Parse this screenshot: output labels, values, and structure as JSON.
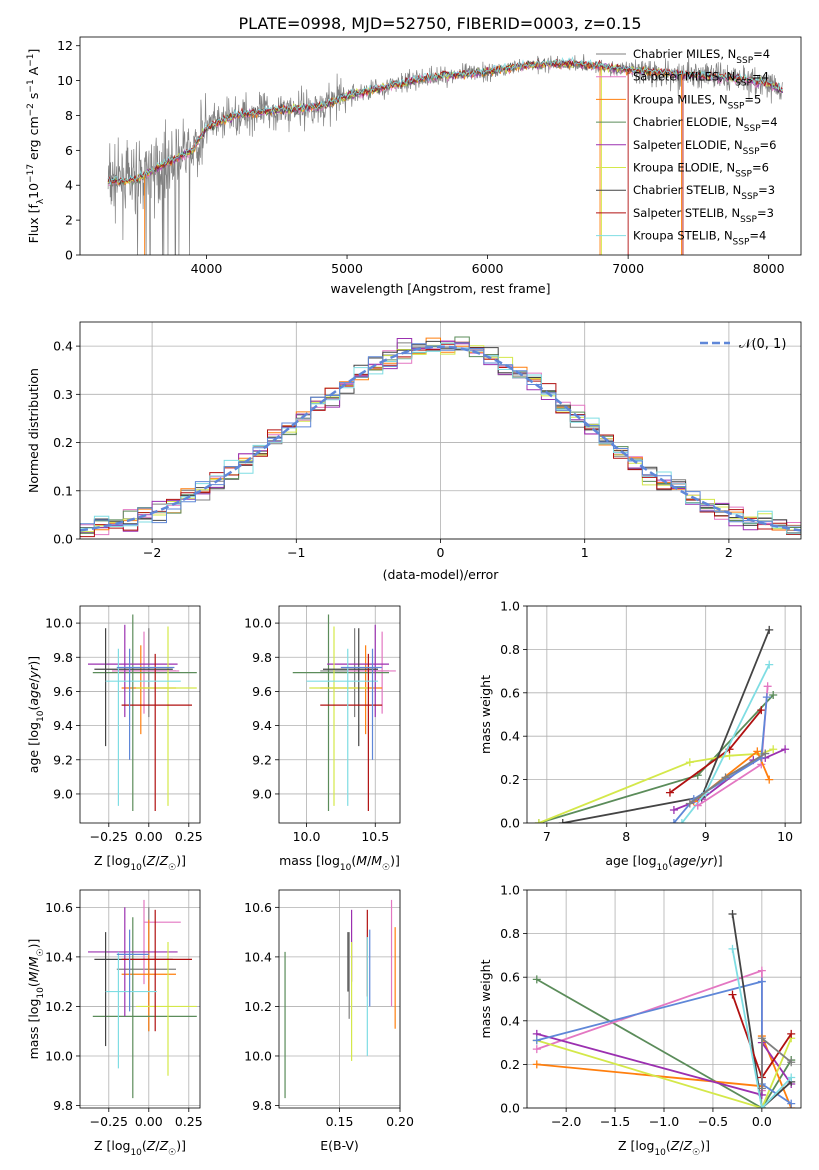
{
  "figure_title": "PLATE=0998, MJD=52750, FIBERID=0003, z=0.15",
  "colors": {
    "Chabrier MILES": "#7f7f7f",
    "Salpeter MILES": "#e377c2",
    "Kroupa MILES": "#ff7f0e",
    "Chabrier ELODIE": "#5b8c5a",
    "Salpeter ELODIE": "#9b30b0",
    "Kroupa ELODIE": "#d4e84a",
    "Chabrier STELIB": "#444444",
    "Salpeter STELIB": "#b01010",
    "Kroupa STELIB": "#7fdde3",
    "blue_model": "#5f87d8",
    "gaussian": "#5f87d8"
  },
  "chart_data": [
    {
      "type": "line",
      "id": "spectrum",
      "xlabel": "wavelength [Angstrom, rest frame]",
      "ylabel_parts": [
        "Flux [f",
        "λ",
        "10",
        "−17",
        " erg cm",
        "−2",
        " s",
        "−1",
        " A",
        "−1",
        "]"
      ],
      "xlim": [
        3100,
        8230
      ],
      "ylim": [
        0,
        12.5
      ],
      "xticks": [
        4000,
        5000,
        6000,
        7000,
        8000
      ],
      "yticks": [
        0,
        2,
        4,
        6,
        8,
        10,
        12
      ],
      "grid": false,
      "legend_position": "top-right",
      "legend": [
        {
          "name": "Chabrier MILES",
          "nssp": "4"
        },
        {
          "name": "Salpeter MILES",
          "nssp": "4"
        },
        {
          "name": "Kroupa MILES",
          "nssp": "5"
        },
        {
          "name": "Chabrier ELODIE",
          "nssp": "4"
        },
        {
          "name": "Salpeter ELODIE",
          "nssp": "6"
        },
        {
          "name": "Kroupa ELODIE",
          "nssp": "6"
        },
        {
          "name": "Chabrier STELIB",
          "nssp": "3"
        },
        {
          "name": "Salpeter STELIB",
          "nssp": "3"
        },
        {
          "name": "Kroupa STELIB",
          "nssp": "4"
        }
      ],
      "nssp_label": "N",
      "nssp_sub": "SSP",
      "data_color": "#808080",
      "continuum": [
        [
          3300,
          4.2
        ],
        [
          3500,
          4.3
        ],
        [
          3700,
          5.2
        ],
        [
          3900,
          6.0
        ],
        [
          4000,
          7.3
        ],
        [
          4200,
          8.0
        ],
        [
          4500,
          8.3
        ],
        [
          4800,
          8.5
        ],
        [
          5000,
          9.1
        ],
        [
          5300,
          9.7
        ],
        [
          5600,
          10.2
        ],
        [
          6000,
          10.5
        ],
        [
          6300,
          10.9
        ],
        [
          6600,
          11.0
        ],
        [
          7000,
          10.6
        ],
        [
          7500,
          10.3
        ],
        [
          7800,
          10.1
        ],
        [
          8000,
          9.8
        ],
        [
          8100,
          9.4
        ]
      ]
    },
    {
      "type": "histogram",
      "id": "residuals",
      "xlabel": "(data-model)/error",
      "ylabel": "Normed distribution",
      "xlim": [
        -2.5,
        2.5
      ],
      "ylim": [
        0,
        0.45
      ],
      "xticks": [
        -2,
        -1,
        0,
        1,
        2
      ],
      "yticks": [
        0.0,
        0.1,
        0.2,
        0.3,
        0.4
      ],
      "grid": true,
      "bin_width": 0.1,
      "legend_label": "𝒩(0, 1)",
      "legend_position": "top-right"
    },
    {
      "type": "scatter",
      "id": "z_age",
      "xlabel": "Z [log10(Z/Z☉)]",
      "ylabel": "age  [log10(age/yr)]",
      "xlim": [
        -0.43,
        0.32
      ],
      "ylim": [
        8.83,
        10.1
      ],
      "xticks": [
        -0.25,
        0,
        0.25
      ],
      "xtick_labels": [
        "−0.25",
        "0.00",
        "0.25"
      ],
      "yticks": [
        9.0,
        9.2,
        9.4,
        9.6,
        9.8,
        10.0
      ],
      "grid": true,
      "points": [
        {
          "c": "#7f7f7f",
          "x": 0.0,
          "xe": [
            -0.2,
            0.17
          ],
          "y": 9.72,
          "ye": [
            9.45,
            9.97
          ]
        },
        {
          "c": "#e377c2",
          "x": -0.03,
          "xe": [
            -0.23,
            0.19
          ],
          "y": 9.72,
          "ye": [
            9.47,
            9.95
          ]
        },
        {
          "c": "#ff7f0e",
          "x": -0.05,
          "xe": [
            -0.17,
            0.17
          ],
          "y": 9.62,
          "ye": [
            9.35,
            9.87
          ]
        },
        {
          "c": "#5b8c5a",
          "x": -0.1,
          "xe": [
            -0.35,
            0.3
          ],
          "y": 9.71,
          "ye": [
            8.9,
            10.05
          ]
        },
        {
          "c": "#9b30b0",
          "x": -0.15,
          "xe": [
            -0.38,
            0.18
          ],
          "y": 9.76,
          "ye": [
            9.45,
            9.99
          ]
        },
        {
          "c": "#d4e84a",
          "x": 0.12,
          "xe": [
            -0.08,
            0.3
          ],
          "y": 9.62,
          "ye": [
            8.93,
            9.98
          ]
        },
        {
          "c": "#444444",
          "x": -0.27,
          "xe": [
            -0.34,
            0.15
          ],
          "y": 9.73,
          "ye": [
            9.28,
            9.97
          ]
        },
        {
          "c": "#b01010",
          "x": 0.04,
          "xe": [
            -0.17,
            0.27
          ],
          "y": 9.52,
          "ye": [
            8.9,
            9.82
          ]
        },
        {
          "c": "#7fdde3",
          "x": -0.19,
          "xe": [
            -0.27,
            0.2
          ],
          "y": 9.66,
          "ye": [
            8.93,
            9.85
          ]
        },
        {
          "c": "#5f87d8",
          "x": -0.12,
          "xe": [
            -0.2,
            0.16
          ],
          "y": 9.74,
          "ye": [
            9.2,
            9.85
          ]
        }
      ]
    },
    {
      "type": "scatter",
      "id": "mass_age",
      "xlabel": "mass [log10(M/M☉)]",
      "xlim": [
        9.8,
        10.68
      ],
      "ylim": [
        8.83,
        10.1
      ],
      "xticks": [
        10.0,
        10.5
      ],
      "xtick_labels": [
        "10.0",
        "10.5"
      ],
      "yticks": [
        9.0,
        9.2,
        9.4,
        9.6,
        9.8,
        10.0
      ],
      "grid": true,
      "points": [
        {
          "c": "#7f7f7f",
          "x": 10.35,
          "xe": [
            10.1,
            10.6
          ],
          "y": 9.72,
          "ye": [
            9.45,
            9.97
          ]
        },
        {
          "c": "#e377c2",
          "x": 10.55,
          "xe": [
            10.3,
            10.65
          ],
          "y": 9.72,
          "ye": [
            9.47,
            9.95
          ]
        },
        {
          "c": "#ff7f0e",
          "x": 10.43,
          "xe": [
            10.1,
            10.55
          ],
          "y": 9.62,
          "ye": [
            9.35,
            9.87
          ]
        },
        {
          "c": "#5b8c5a",
          "x": 10.16,
          "xe": [
            9.9,
            10.6
          ],
          "y": 9.71,
          "ye": [
            8.9,
            10.05
          ]
        },
        {
          "c": "#9b30b0",
          "x": 10.5,
          "xe": [
            10.15,
            10.6
          ],
          "y": 9.76,
          "ye": [
            9.45,
            9.99
          ]
        },
        {
          "c": "#d4e84a",
          "x": 10.2,
          "xe": [
            10.02,
            10.45
          ],
          "y": 9.62,
          "ye": [
            8.93,
            9.98
          ]
        },
        {
          "c": "#444444",
          "x": 10.38,
          "xe": [
            10.12,
            10.52
          ],
          "y": 9.73,
          "ye": [
            9.28,
            9.97
          ]
        },
        {
          "c": "#b01010",
          "x": 10.45,
          "xe": [
            10.1,
            10.55
          ],
          "y": 9.52,
          "ye": [
            8.9,
            9.82
          ]
        },
        {
          "c": "#7fdde3",
          "x": 10.3,
          "xe": [
            10.0,
            10.52
          ],
          "y": 9.66,
          "ye": [
            8.93,
            9.85
          ]
        },
        {
          "c": "#5f87d8",
          "x": 10.48,
          "xe": [
            10.25,
            10.55
          ],
          "y": 9.74,
          "ye": [
            9.2,
            9.85
          ]
        }
      ]
    },
    {
      "type": "line",
      "id": "age_weight",
      "xlabel": "age  [log10(age/yr)]",
      "ylabel": "mass weight",
      "xlim": [
        6.75,
        10.2
      ],
      "ylim": [
        0,
        1.0
      ],
      "xticks": [
        7,
        8,
        9,
        10
      ],
      "yticks": [
        0.0,
        0.2,
        0.4,
        0.6,
        0.8,
        1.0
      ],
      "grid": true,
      "series": [
        {
          "c": "#5b8c5a",
          "x": [
            6.9,
            8.9,
            9.85
          ],
          "y": [
            0.0,
            0.22,
            0.59
          ]
        },
        {
          "c": "#d4e84a",
          "x": [
            6.9,
            8.8,
            9.3,
            9.7,
            9.85
          ],
          "y": [
            0.0,
            0.28,
            0.31,
            0.32,
            0.34
          ]
        },
        {
          "c": "#9b30b0",
          "x": [
            8.6,
            8.95,
            9.6,
            9.75,
            10.0
          ],
          "y": [
            0.06,
            0.11,
            0.29,
            0.3,
            0.34
          ]
        },
        {
          "c": "#b01010",
          "x": [
            8.55,
            9.3,
            9.7
          ],
          "y": [
            0.14,
            0.34,
            0.52
          ]
        },
        {
          "c": "#444444",
          "x": [
            7.2,
            8.95,
            9.8
          ],
          "y": [
            0.0,
            0.12,
            0.89
          ]
        },
        {
          "c": "#7fdde3",
          "x": [
            8.7,
            9.0,
            9.8
          ],
          "y": [
            0.0,
            0.14,
            0.73
          ]
        },
        {
          "c": "#e377c2",
          "x": [
            8.9,
            9.7,
            9.78
          ],
          "y": [
            0.08,
            0.27,
            0.63
          ]
        },
        {
          "c": "#ff7f0e",
          "x": [
            8.85,
            9.65,
            9.8
          ],
          "y": [
            0.1,
            0.33,
            0.2
          ]
        },
        {
          "c": "#5f87d8",
          "x": [
            8.6,
            8.85,
            9.7,
            9.77
          ],
          "y": [
            0.0,
            0.11,
            0.3,
            0.58
          ]
        },
        {
          "c": "#7f7f7f",
          "x": [
            8.8,
            9.25,
            9.75
          ],
          "y": [
            0.09,
            0.21,
            0.32
          ]
        }
      ]
    },
    {
      "type": "scatter",
      "id": "z_mass",
      "xlabel": "Z [log10(Z/Z☉)]",
      "ylabel": "mass [log10(M/M☉)]",
      "xlim": [
        -0.43,
        0.32
      ],
      "ylim": [
        9.79,
        10.67
      ],
      "xticks": [
        -0.25,
        0,
        0.25
      ],
      "xtick_labels": [
        "−0.25",
        "0.00",
        "0.25"
      ],
      "yticks": [
        9.8,
        10.0,
        10.2,
        10.4,
        10.6
      ],
      "grid": true,
      "points": [
        {
          "c": "#7f7f7f",
          "x": 0.0,
          "xe": [
            -0.2,
            0.17
          ],
          "y": 10.35,
          "ye": [
            10.1,
            10.6
          ]
        },
        {
          "c": "#e377c2",
          "x": -0.03,
          "xe": [
            -0.03,
            0.2
          ],
          "y": 10.54,
          "ye": [
            10.29,
            10.63
          ]
        },
        {
          "c": "#ff7f0e",
          "x": 0.0,
          "xe": [
            -0.17,
            0.17
          ],
          "y": 10.33,
          "ye": [
            10.1,
            10.55
          ]
        },
        {
          "c": "#5b8c5a",
          "x": -0.1,
          "xe": [
            -0.35,
            0.3
          ],
          "y": 10.16,
          "ye": [
            9.83,
            10.56
          ]
        },
        {
          "c": "#9b30b0",
          "x": -0.15,
          "xe": [
            -0.38,
            0.18
          ],
          "y": 10.42,
          "ye": [
            10.16,
            10.6
          ]
        },
        {
          "c": "#d4e84a",
          "x": 0.12,
          "xe": [
            -0.08,
            0.3
          ],
          "y": 10.2,
          "ye": [
            9.92,
            10.46
          ]
        },
        {
          "c": "#444444",
          "x": -0.27,
          "xe": [
            -0.34,
            0.15
          ],
          "y": 10.39,
          "ye": [
            10.04,
            10.5
          ]
        },
        {
          "c": "#b01010",
          "x": 0.04,
          "xe": [
            -0.17,
            0.27
          ],
          "y": 10.39,
          "ye": [
            10.1,
            10.59
          ]
        },
        {
          "c": "#7fdde3",
          "x": -0.19,
          "xe": [
            -0.27,
            0.05
          ],
          "y": 10.26,
          "ye": [
            9.95,
            10.42
          ]
        },
        {
          "c": "#5f87d8",
          "x": -0.12,
          "xe": [
            -0.2,
            0.0
          ],
          "y": 10.41,
          "ye": [
            10.18,
            10.51
          ]
        }
      ]
    },
    {
      "type": "scatter",
      "id": "ebv_mass",
      "xlabel": "E(B-V)",
      "xlim": [
        0.1,
        0.2
      ],
      "ylim": [
        9.79,
        10.67
      ],
      "xticks": [
        0.15,
        0.2
      ],
      "xtick_labels": [
        "0.15",
        "0.20"
      ],
      "yticks": [
        9.8,
        10.0,
        10.2,
        10.4,
        10.6
      ],
      "grid": true,
      "points": [
        {
          "c": "#7f7f7f",
          "x": 0.158,
          "y": 10.35,
          "ye": [
            10.15,
            10.5
          ]
        },
        {
          "c": "#e377c2",
          "x": 0.193,
          "y": 10.42,
          "ye": [
            10.2,
            10.63
          ]
        },
        {
          "c": "#ff7f0e",
          "x": 0.196,
          "y": 10.33,
          "ye": [
            10.11,
            10.52
          ]
        },
        {
          "c": "#5b8c5a",
          "x": 0.105,
          "y": 10.16,
          "ye": [
            9.83,
            10.42
          ]
        },
        {
          "c": "#9b30b0",
          "x": 0.16,
          "y": 10.42,
          "ye": [
            10.3,
            10.59
          ]
        },
        {
          "c": "#d4e84a",
          "x": 0.16,
          "y": 10.2,
          "ye": [
            9.98,
            10.46
          ]
        },
        {
          "c": "#444444",
          "x": 0.157,
          "y": 10.39,
          "ye": [
            10.26,
            10.5
          ]
        },
        {
          "c": "#b01010",
          "x": 0.173,
          "y": 10.39,
          "ye": [
            10.24,
            10.59
          ]
        },
        {
          "c": "#7fdde3",
          "x": 0.173,
          "y": 10.26,
          "ye": [
            10.0,
            10.48
          ]
        },
        {
          "c": "#5f87d8",
          "x": 0.175,
          "y": 10.41,
          "ye": [
            10.2,
            10.51
          ]
        }
      ]
    },
    {
      "type": "line",
      "id": "z_weight",
      "xlabel": "Z [log10(Z/Z☉)]",
      "ylabel": "mass weight",
      "xlim": [
        -2.4,
        0.4
      ],
      "ylim": [
        0,
        1.0
      ],
      "xticks": [
        -2.0,
        -1.5,
        -1.0,
        -0.5,
        0.0
      ],
      "xtick_labels": [
        "−2.0",
        "−1.5",
        "−1.0",
        "−0.5",
        "0.0"
      ],
      "yticks": [
        0.0,
        0.2,
        0.4,
        0.6,
        0.8,
        1.0
      ],
      "grid": true,
      "series": [
        {
          "c": "#5b8c5a",
          "x": [
            -2.3,
            0.0,
            0.3
          ],
          "y": [
            0.59,
            0.0,
            0.22
          ]
        },
        {
          "c": "#ff7f0e",
          "x": [
            -2.3,
            0.0,
            0.0,
            0.3
          ],
          "y": [
            0.2,
            0.1,
            0.33,
            0.0
          ]
        },
        {
          "c": "#e377c2",
          "x": [
            -2.3,
            0.0,
            0.0
          ],
          "y": [
            0.27,
            0.63,
            0.08
          ]
        },
        {
          "c": "#9b30b0",
          "x": [
            -2.3,
            0.0,
            0.0,
            0.3
          ],
          "y": [
            0.34,
            0.06,
            0.3,
            0.11
          ]
        },
        {
          "c": "#d4e84a",
          "x": [
            -2.3,
            0.0,
            0.3
          ],
          "y": [
            0.31,
            0.0,
            0.32
          ]
        },
        {
          "c": "#5f87d8",
          "x": [
            -2.3,
            0.0,
            0.0,
            0.3
          ],
          "y": [
            0.31,
            0.58,
            0.11,
            0.02
          ]
        },
        {
          "c": "#444444",
          "x": [
            -0.3,
            0.0,
            0.3
          ],
          "y": [
            0.89,
            0.0,
            0.12
          ]
        },
        {
          "c": "#b01010",
          "x": [
            -0.3,
            0.0,
            0.3
          ],
          "y": [
            0.52,
            0.14,
            0.34
          ]
        },
        {
          "c": "#7fdde3",
          "x": [
            -0.3,
            0.0,
            0.3
          ],
          "y": [
            0.73,
            0.0,
            0.14
          ]
        },
        {
          "c": "#7f7f7f",
          "x": [
            0.0,
            0.0,
            0.3
          ],
          "y": [
            0.09,
            0.32,
            0.21
          ]
        }
      ]
    }
  ]
}
